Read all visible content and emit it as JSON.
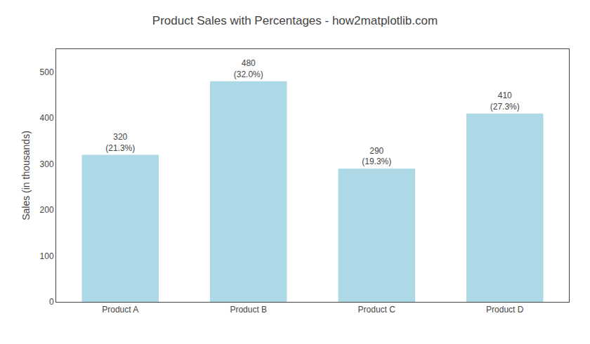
{
  "chart_data": {
    "type": "bar",
    "title": "Product Sales with Percentages - how2matplotlib.com",
    "categories": [
      "Product A",
      "Product B",
      "Product C",
      "Product D"
    ],
    "values": [
      320,
      480,
      290,
      410
    ],
    "value_labels": [
      "320\n(21.3%)",
      "480\n(32.0%)",
      "290\n(19.3%)",
      "410\n(27.3%)"
    ],
    "data_labels": true,
    "color": "#add8e6",
    "ylabel": "Sales (in thousands)",
    "ylim": [
      0,
      550
    ],
    "yticks": [
      0,
      100,
      200,
      300,
      400,
      500
    ],
    "grid": false
  }
}
